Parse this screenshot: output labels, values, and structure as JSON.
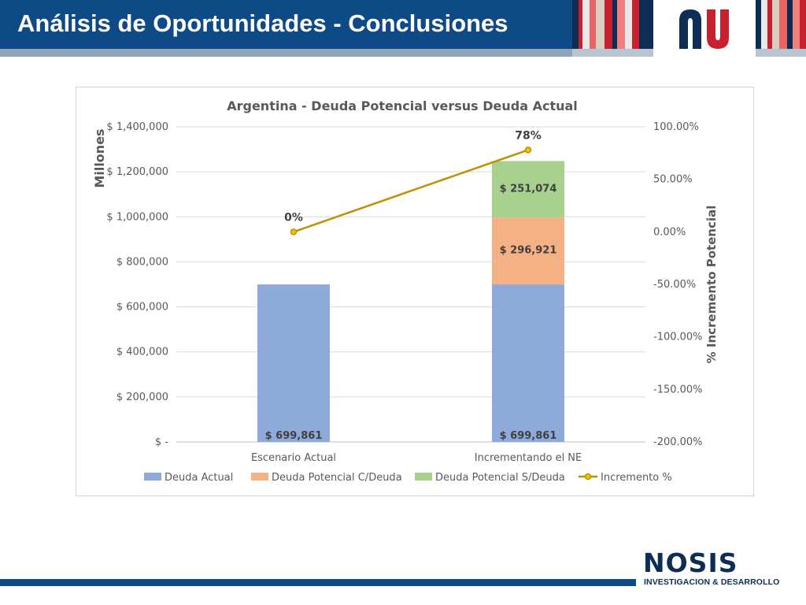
{
  "slide": {
    "title": "Análisis de Oportunidades - Conclusiones"
  },
  "brand": {
    "primary": "#0d4a86",
    "accent_red": "#c8202f",
    "footer_logo_text": "NOSIS",
    "footer_subtitle": "INVESTIGACION & DESARROLLO"
  },
  "chart_data": {
    "type": "bar",
    "stacked": true,
    "title": "Argentina - Deuda Potencial versus Deuda Actual",
    "categories": [
      "Escenario Actual",
      "Incrementando el NE"
    ],
    "ylabel": "Millones",
    "ylim": [
      0,
      1400000
    ],
    "yticks": [
      "$ -",
      "$ 200,000",
      "$ 400,000",
      "$ 600,000",
      "$ 800,000",
      "$ 1,000,000",
      "$ 1,200,000",
      "$ 1,400,000"
    ],
    "y2label": "% Incremento Potencial",
    "y2lim": [
      -200,
      100
    ],
    "y2ticks": [
      "-200.00%",
      "-150.00%",
      "-100.00%",
      "-50.00%",
      "0.00%",
      "50.00%",
      "100.00%"
    ],
    "series": [
      {
        "name": "Deuda Actual",
        "color": "#8eaadb",
        "values": [
          699861,
          699861
        ],
        "labels": [
          "$ 699,861",
          "$ 699,861"
        ]
      },
      {
        "name": "Deuda Potencial C/Deuda",
        "color": "#f4b183",
        "values": [
          0,
          296921
        ],
        "labels": [
          "",
          "$ 296,921"
        ]
      },
      {
        "name": "Deuda Potencial S/Deuda",
        "color": "#a9d18e",
        "values": [
          0,
          251074
        ],
        "labels": [
          "",
          "$ 251,074"
        ]
      }
    ],
    "line_series": {
      "name": "Incremento %",
      "color": "#bf9000",
      "axis": "secondary",
      "values": [
        0,
        78
      ],
      "labels": [
        "0%",
        "78%"
      ]
    },
    "grid": true,
    "legend": "bottom"
  }
}
